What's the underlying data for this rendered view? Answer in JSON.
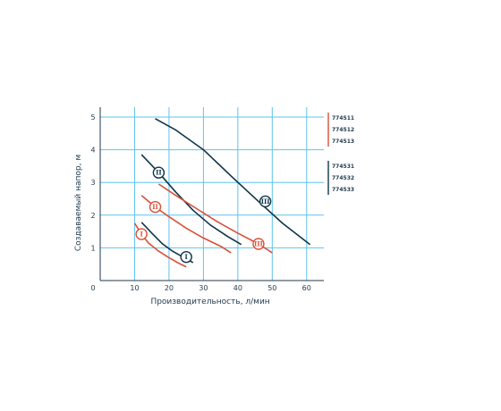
{
  "chart_data": {
    "type": "line",
    "xlabel": "Производительность, л/мин",
    "ylabel": "Создаваемый напор, м",
    "xlim": [
      0,
      65
    ],
    "ylim": [
      0,
      5.3
    ],
    "x_ticks": [
      0,
      10,
      20,
      30,
      40,
      50,
      60
    ],
    "y_ticks": [
      1,
      2,
      3,
      4,
      5
    ],
    "grid": true,
    "colors": {
      "dark": "#0f3549",
      "red": "#d9503a",
      "grid": "#5fc3ee"
    },
    "legend": {
      "placement": "right",
      "groups": [
        {
          "color": "red",
          "items": [
            "774511",
            "774512",
            "774513"
          ]
        },
        {
          "color": "dark",
          "items": [
            "774531",
            "774532",
            "774533"
          ]
        }
      ]
    },
    "series": [
      {
        "group": "dark",
        "marker": "I",
        "marker_at": [
          25,
          0.72
        ],
        "x": [
          12,
          15,
          18,
          21,
          24,
          27
        ],
        "y": [
          1.78,
          1.45,
          1.13,
          0.9,
          0.72,
          0.55
        ]
      },
      {
        "group": "dark",
        "marker": "II",
        "marker_at": [
          17,
          3.3
        ],
        "x": [
          12,
          17,
          22,
          27,
          32,
          37,
          41
        ],
        "y": [
          3.85,
          3.3,
          2.7,
          2.15,
          1.7,
          1.35,
          1.1
        ]
      },
      {
        "group": "dark",
        "marker": "III",
        "marker_at": [
          48,
          2.42
        ],
        "x": [
          16,
          22,
          30,
          38,
          46,
          53,
          61
        ],
        "y": [
          4.95,
          4.6,
          4.0,
          3.2,
          2.42,
          1.75,
          1.1
        ]
      },
      {
        "group": "red",
        "marker": "I",
        "marker_at": [
          12,
          1.42
        ],
        "x": [
          10,
          12,
          14,
          17,
          20,
          23,
          25
        ],
        "y": [
          1.75,
          1.42,
          1.15,
          0.9,
          0.7,
          0.52,
          0.42
        ]
      },
      {
        "group": "red",
        "marker": "II",
        "marker_at": [
          16,
          2.25
        ],
        "x": [
          12,
          16,
          20,
          25,
          30,
          35,
          38
        ],
        "y": [
          2.6,
          2.25,
          1.95,
          1.6,
          1.3,
          1.05,
          0.85
        ]
      },
      {
        "group": "red",
        "marker": "III",
        "marker_at": [
          46,
          1.12
        ],
        "x": [
          17,
          22,
          28,
          34,
          40,
          46,
          50
        ],
        "y": [
          2.95,
          2.6,
          2.2,
          1.8,
          1.45,
          1.12,
          0.85
        ]
      }
    ]
  }
}
